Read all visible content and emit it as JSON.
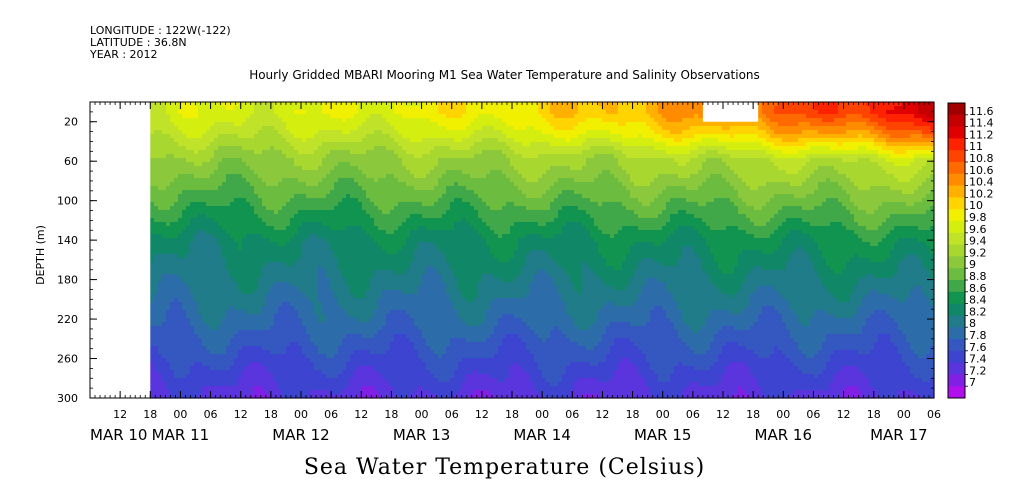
{
  "header": {
    "longitude": "LONGITUDE : 122W(-122)",
    "latitude": "LATITUDE : 36.8N",
    "year": "YEAR : 2012"
  },
  "title": "Hourly Gridded MBARI Mooring M1 Sea Water Temperature and Salinity Observations",
  "bottom_title": "Sea Water Temperature (Celsius)",
  "chart_data": {
    "type": "heatmap",
    "title": "Hourly Gridded MBARI Mooring M1 Sea Water Temperature and Salinity Observations",
    "ylabel": "DEPTH (m)",
    "xlabel": "",
    "x_hours": [
      "12",
      "18",
      "00",
      "06",
      "12",
      "18",
      "00",
      "06",
      "12",
      "18",
      "00",
      "06",
      "12",
      "18",
      "00",
      "06",
      "12",
      "18",
      "00",
      "06",
      "12",
      "18",
      "00",
      "06",
      "12",
      "18",
      "00",
      "06"
    ],
    "x_days": [
      "MAR 10",
      "MAR 11",
      "MAR 12",
      "MAR 13",
      "MAR 14",
      "MAR 15",
      "MAR 16",
      "MAR 17"
    ],
    "x_range_hours": [
      6,
      174
    ],
    "data_start_hour": 18,
    "y_ticks": [
      "20",
      "60",
      "100",
      "140",
      "180",
      "220",
      "260",
      "300"
    ],
    "y_range": [
      300,
      0
    ],
    "colorbar_labels": [
      "11.6",
      "11.4",
      "11.2",
      "11",
      "10.8",
      "10.6",
      "10.4",
      "10.2",
      "10",
      "9.8",
      "9.6",
      "9.4",
      "9.2",
      "9",
      "8.8",
      "8.6",
      "8.4",
      "8.2",
      "8",
      "7.8",
      "7.6",
      "7.4",
      "7.2",
      "7"
    ],
    "colorbar_colors": [
      "#a00000",
      "#c40000",
      "#e00000",
      "#ff2200",
      "#ff4400",
      "#ff6a00",
      "#ff8c00",
      "#ffb000",
      "#ffd400",
      "#f0f000",
      "#d4ee10",
      "#c0e228",
      "#a8d830",
      "#8cc83c",
      "#6cbc40",
      "#40a848",
      "#109450",
      "#108868",
      "#207c88",
      "#2c6ca8",
      "#3458c0",
      "#3c44d0",
      "#5a34dc",
      "#8020e4",
      "#b010ec"
    ],
    "depth_profile_mar10": [
      {
        "depth": 10,
        "value": 9.7
      },
      {
        "depth": 30,
        "value": 9.5
      },
      {
        "depth": 60,
        "value": 9.1
      },
      {
        "depth": 100,
        "value": 8.7
      },
      {
        "depth": 140,
        "value": 8.3
      },
      {
        "depth": 180,
        "value": 8.1
      },
      {
        "depth": 220,
        "value": 7.9
      },
      {
        "depth": 260,
        "value": 7.6
      },
      {
        "depth": 300,
        "value": 7.3
      }
    ],
    "depth_profile_mar17": [
      {
        "depth": 10,
        "value": 11.4
      },
      {
        "depth": 30,
        "value": 10.8
      },
      {
        "depth": 60,
        "value": 9.5
      },
      {
        "depth": 100,
        "value": 9.0
      },
      {
        "depth": 140,
        "value": 8.5
      },
      {
        "depth": 180,
        "value": 8.2
      },
      {
        "depth": 220,
        "value": 7.9
      },
      {
        "depth": 260,
        "value": 7.6
      },
      {
        "depth": 300,
        "value": 7.3
      }
    ],
    "missing_data_regions": [
      {
        "x_start_hour": 6,
        "x_end_hour": 18,
        "depth_start": 0,
        "depth_end": 300
      },
      {
        "x_start_hour": 128,
        "x_end_hour": 139,
        "depth_start": 0,
        "depth_end": 20
      }
    ]
  }
}
